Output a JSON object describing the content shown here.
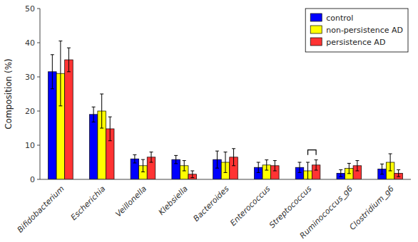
{
  "chart_data": {
    "type": "bar",
    "categories": [
      "Bifidobacterium",
      "Escherichia",
      "Veillonella",
      "Klebsiella",
      "Bacteroides",
      "Enterococcus",
      "Streptococcus",
      "Ruminococcus_g6",
      "Clostridium_g6"
    ],
    "series": [
      {
        "name": "control",
        "color": "#0000FF",
        "values": [
          31.5,
          19.0,
          6.0,
          5.8,
          5.8,
          3.5,
          3.5,
          1.8,
          3.0
        ],
        "errors": [
          5.0,
          2.2,
          1.2,
          1.2,
          2.5,
          1.5,
          1.5,
          1.0,
          1.5
        ]
      },
      {
        "name": "non-persistence AD",
        "color": "#FFFF00",
        "values": [
          31.0,
          20.0,
          4.0,
          4.0,
          5.0,
          4.2,
          2.5,
          3.2,
          5.0
        ],
        "errors": [
          9.5,
          5.0,
          1.8,
          1.5,
          3.0,
          1.5,
          2.5,
          1.5,
          2.5
        ]
      },
      {
        "name": "persistence AD",
        "color": "#FF3333",
        "values": [
          35.0,
          14.8,
          6.5,
          1.5,
          6.5,
          4.0,
          4.2,
          4.0,
          1.8
        ],
        "errors": [
          3.5,
          3.5,
          1.5,
          1.0,
          2.5,
          1.5,
          1.5,
          1.5,
          1.0
        ]
      }
    ],
    "ylabel": "Composition (%)",
    "ylim": [
      0,
      50
    ],
    "yticks": [
      0,
      10,
      20,
      30,
      40,
      50
    ],
    "grid": false,
    "legend": "upper right",
    "significance_group": 6
  }
}
